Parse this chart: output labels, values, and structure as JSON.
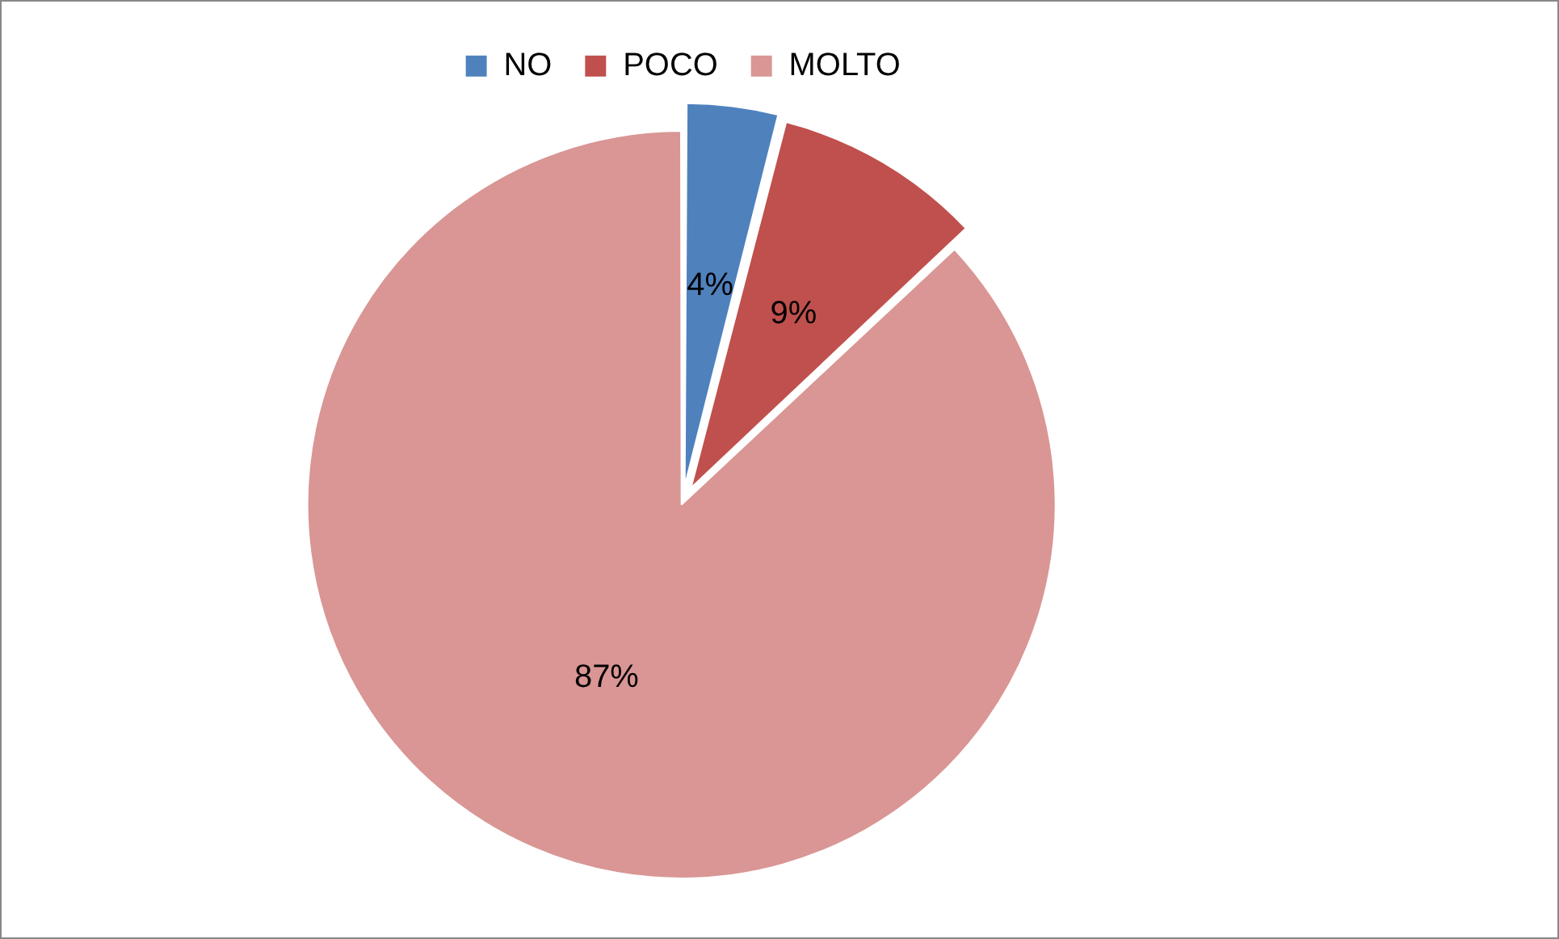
{
  "chart_data": {
    "type": "pie",
    "categories": [
      "NO",
      "POCO",
      "MOLTO"
    ],
    "values": [
      4,
      9,
      87
    ],
    "colors": [
      "#4f81bd",
      "#c0504d",
      "#d99694"
    ],
    "value_labels": [
      "4%",
      "9%",
      "87%"
    ],
    "legend": "top"
  }
}
